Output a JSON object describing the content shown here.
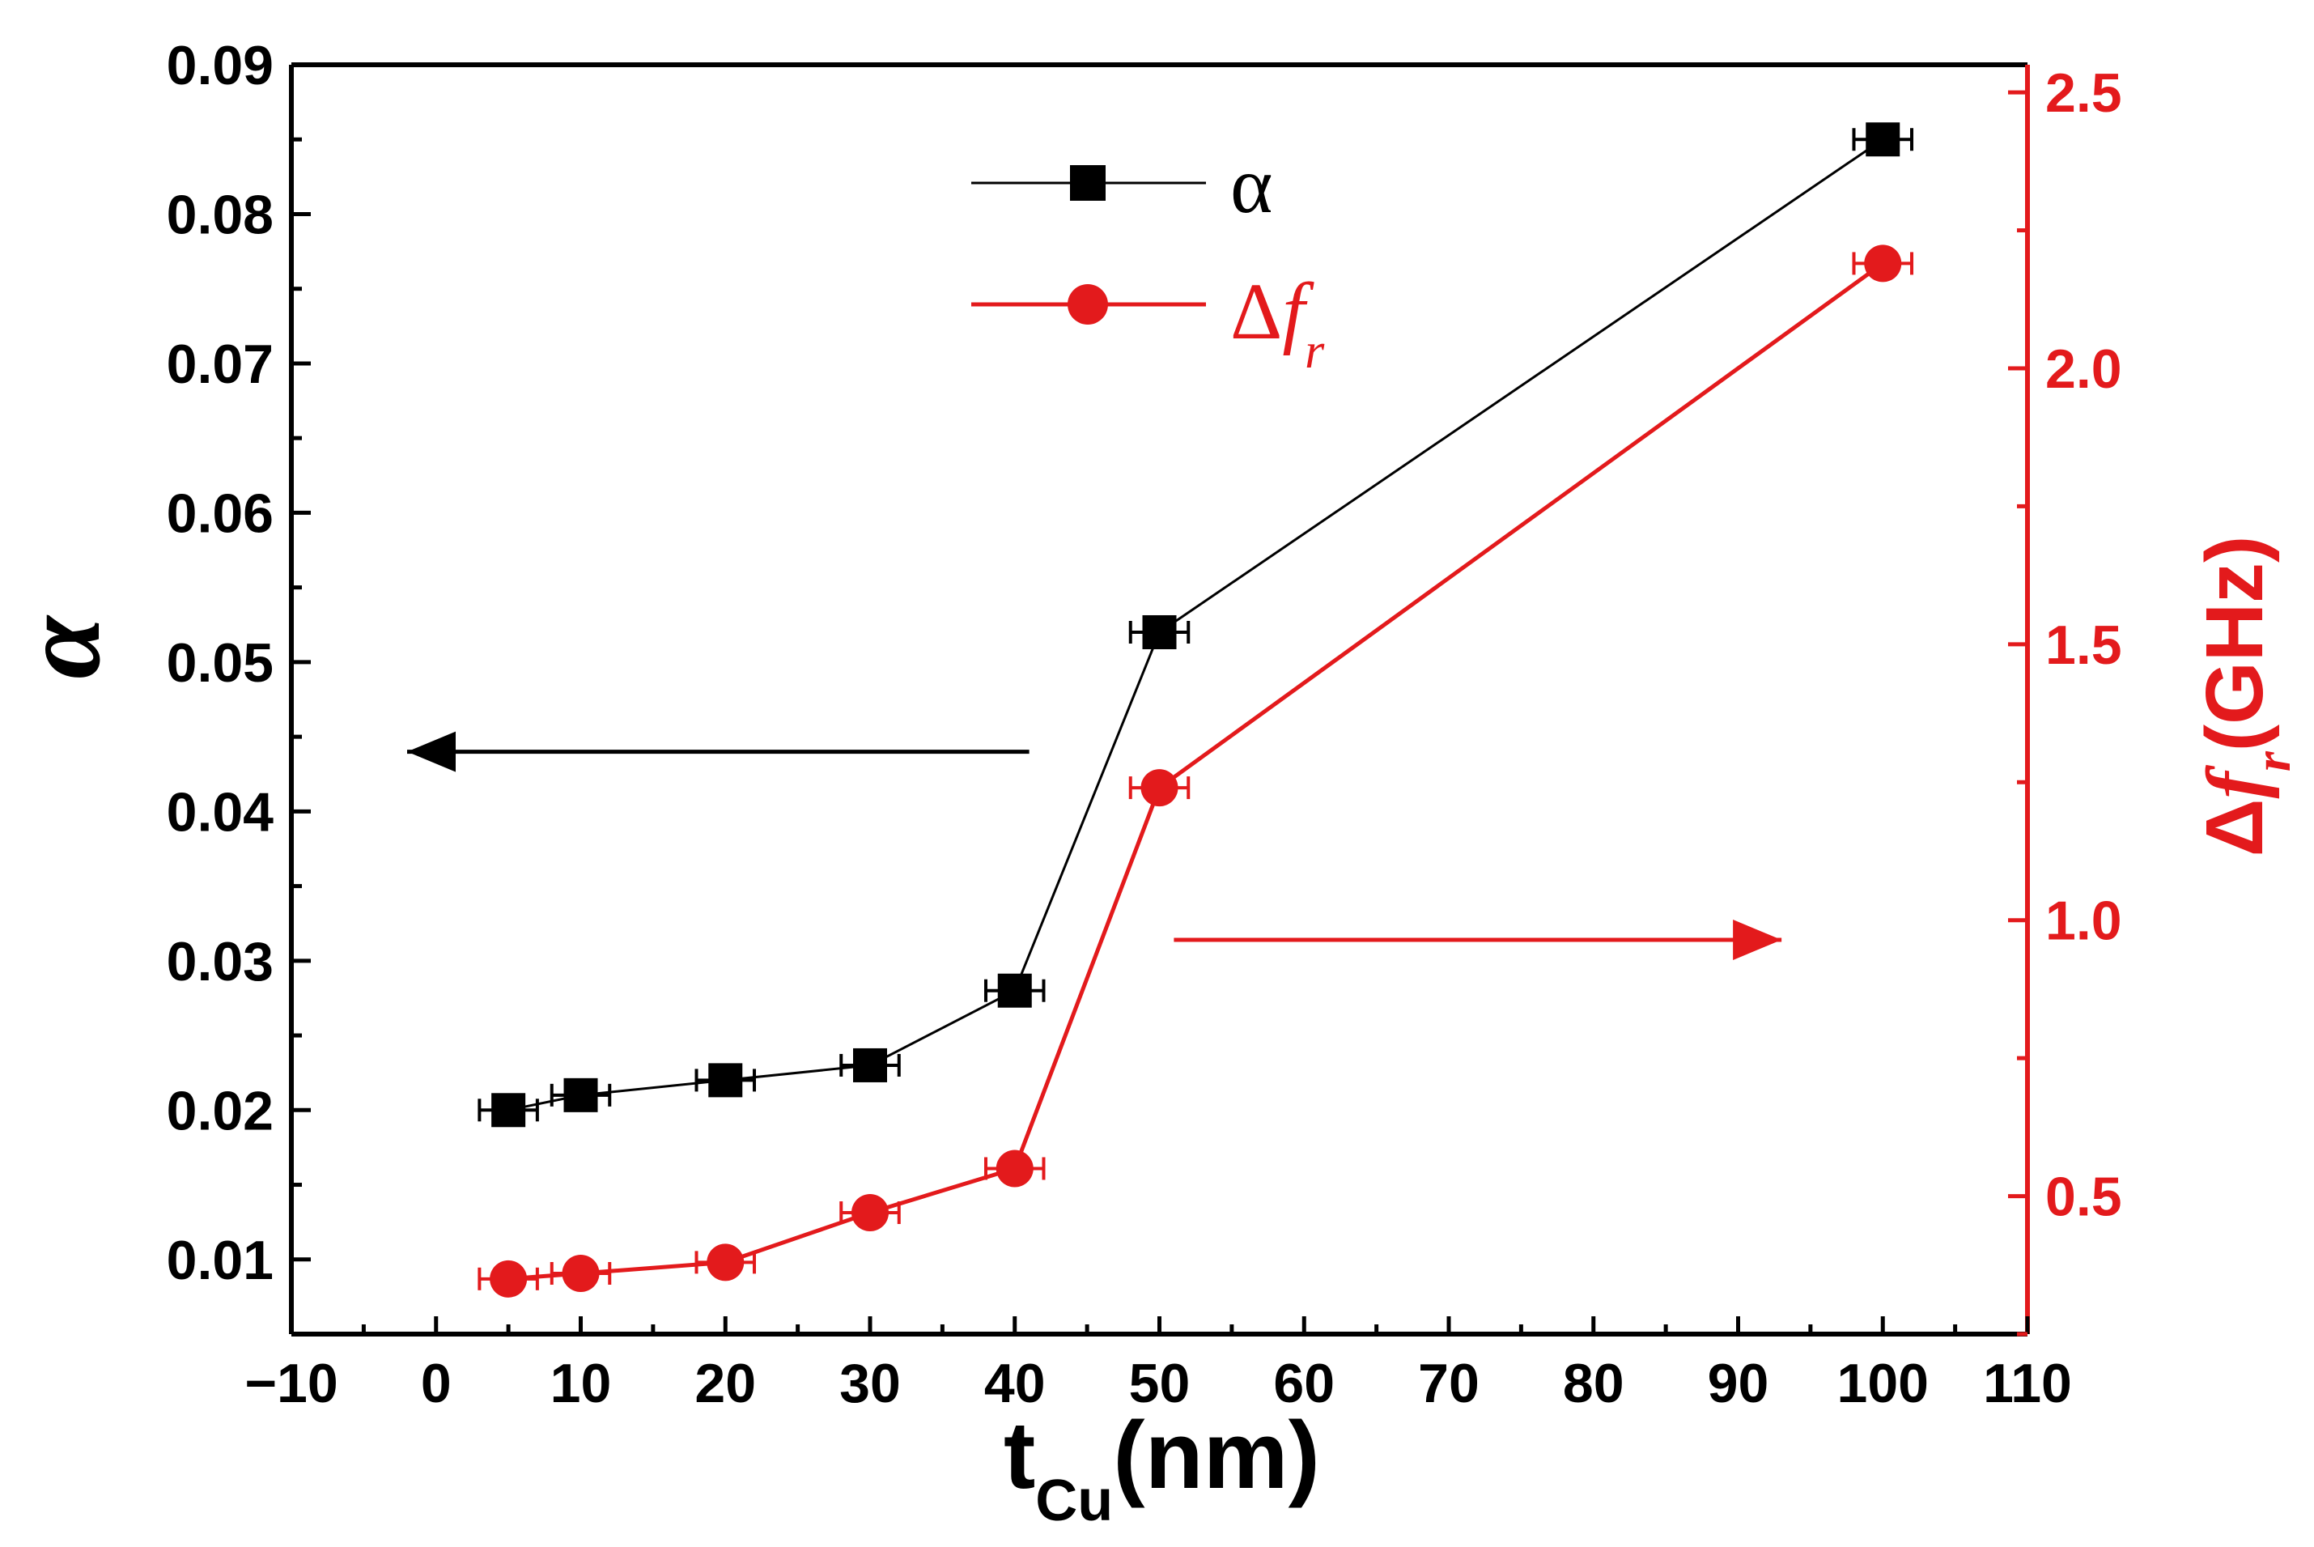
{
  "chart_data": {
    "type": "line",
    "xlabel": {
      "main": "t",
      "sub": "Cu",
      "unit": "(nm)"
    },
    "x_axis": {
      "range": [
        -10,
        110
      ],
      "ticks": [
        -10,
        0,
        10,
        20,
        30,
        40,
        50,
        60,
        70,
        80,
        90,
        100,
        110
      ],
      "minor_step": 5
    },
    "y_left": {
      "label": "α",
      "range": [
        0.005,
        0.09
      ],
      "ticks": [
        0.01,
        0.02,
        0.03,
        0.04,
        0.05,
        0.06,
        0.07,
        0.08,
        0.09
      ],
      "tick_labels": [
        "0.01",
        "0.02",
        "0.03",
        "0.04",
        "0.05",
        "0.06",
        "0.07",
        "0.08",
        "0.09"
      ],
      "color": "#000000"
    },
    "y_right": {
      "label": {
        "delta": "Δ",
        "f": "f",
        "sub": "r",
        "unit": "(GHz)"
      },
      "range": [
        0.25,
        2.55
      ],
      "ticks": [
        0.5,
        1.0,
        1.5,
        2.0,
        2.5
      ],
      "tick_labels": [
        "0.5",
        "1.0",
        "1.5",
        "2.0",
        "2.5"
      ],
      "color": "#e31a1c"
    },
    "series": [
      {
        "name": "α",
        "axis": "left",
        "marker": "square",
        "color": "#000000",
        "x": [
          5,
          10,
          20,
          30,
          40,
          50,
          100
        ],
        "values": [
          0.02,
          0.021,
          0.022,
          0.023,
          0.028,
          0.052,
          0.085
        ],
        "x_error": 2
      },
      {
        "name": "Δf_r",
        "axis": "right",
        "marker": "circle",
        "color": "#e31a1c",
        "x": [
          5,
          10,
          20,
          30,
          40,
          50,
          100
        ],
        "values": [
          0.35,
          0.36,
          0.38,
          0.47,
          0.55,
          1.24,
          2.19
        ],
        "x_error": 2
      }
    ],
    "legend": {
      "position": "top-center",
      "entries": [
        {
          "text": "α"
        },
        {
          "delta": "Δ",
          "f": "f",
          "sub": "r"
        }
      ]
    },
    "annotations": [
      {
        "type": "arrow",
        "direction": "left",
        "meaning": "α uses left axis",
        "x_start": 41,
        "x_end": -2,
        "y": 0.044
      },
      {
        "type": "arrow",
        "direction": "right",
        "meaning": "Δf_r uses right axis",
        "x_start": 51,
        "x_end": 93,
        "y": 0.0314
      }
    ]
  }
}
